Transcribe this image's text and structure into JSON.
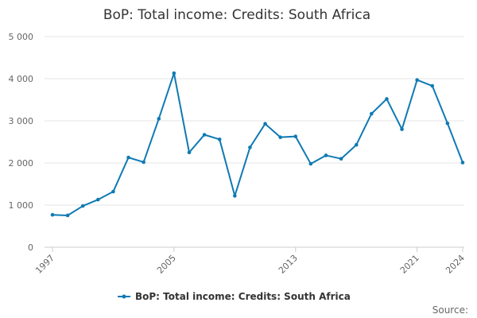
{
  "chart_data": {
    "type": "line",
    "title": "BoP: Total income: Credits: South Africa",
    "xlabel": "",
    "ylabel": "",
    "x": [
      1997,
      1998,
      1999,
      2000,
      2001,
      2002,
      2003,
      2004,
      2005,
      2006,
      2007,
      2008,
      2009,
      2010,
      2011,
      2012,
      2013,
      2014,
      2015,
      2016,
      2017,
      2018,
      2019,
      2020,
      2021,
      2022,
      2023,
      2024
    ],
    "series": [
      {
        "name": "BoP: Total income: Credits: South Africa",
        "values": [
          770,
          755,
          980,
          1130,
          1320,
          2130,
          2020,
          3050,
          4130,
          2250,
          2670,
          2560,
          1220,
          2370,
          2930,
          2610,
          2630,
          1980,
          2180,
          2100,
          2430,
          3170,
          3520,
          2800,
          3970,
          3830,
          2940,
          2010
        ]
      }
    ],
    "xticks": [
      "1997",
      "2005",
      "2013",
      "2021",
      "2024"
    ],
    "yticks": [
      "0",
      "1 000",
      "2 000",
      "3 000",
      "4 000",
      "5 000"
    ],
    "ylim": [
      0,
      5000
    ],
    "grid": true,
    "legend_position": "bottom",
    "series_color": "#0f7ab3",
    "credit": "Source:"
  }
}
